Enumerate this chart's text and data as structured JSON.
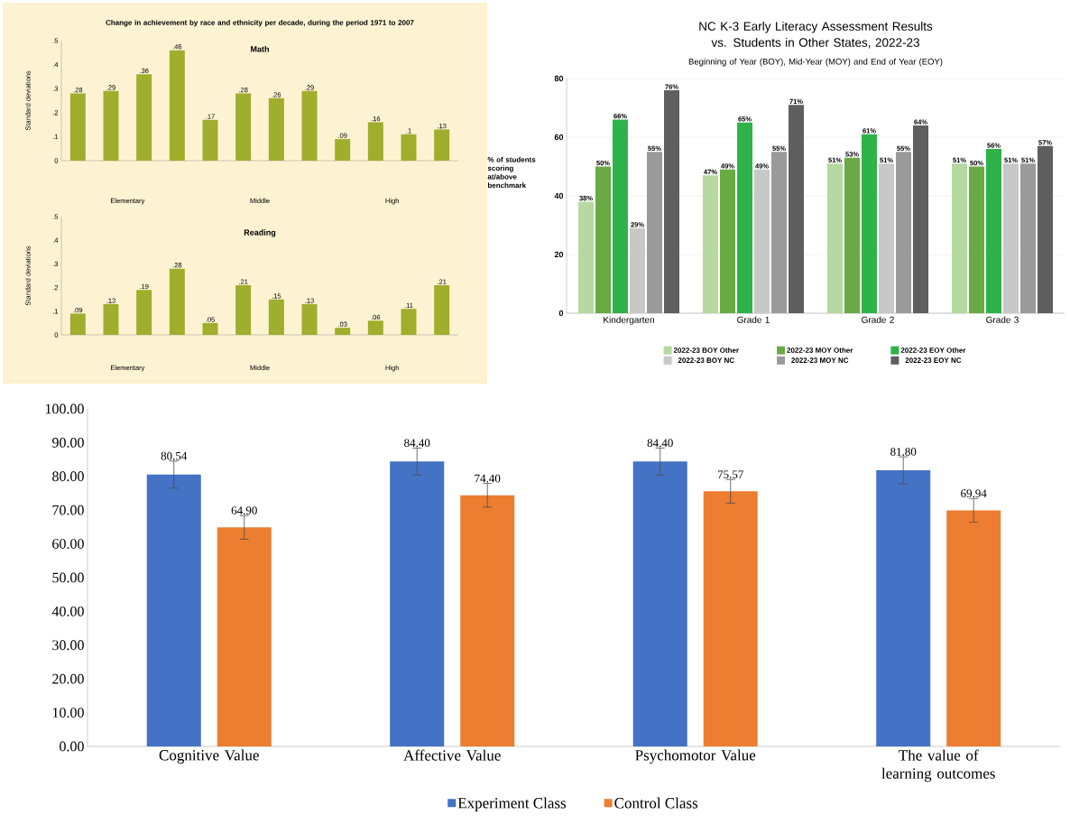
{
  "chart_data": [
    {
      "type": "bar",
      "title": "Change in achievement by race and ethnicity per decade, during the period 1971 to 2007",
      "subtitle": "Math",
      "ylabel": "Standard deviations",
      "categories": [
        null,
        null,
        null,
        null,
        null,
        null,
        null,
        null,
        null,
        null,
        null,
        null
      ],
      "values": [
        0.28,
        0.29,
        0.36,
        0.46,
        0.17,
        0.28,
        0.26,
        0.29,
        0.09,
        0.16,
        0.11,
        0.13
      ],
      "color": "#9fae2c",
      "value_labels": [
        ".28",
        ".29",
        ".36",
        ".46",
        ".17",
        ".28",
        ".26",
        ".29",
        ".09",
        ".16",
        ".1",
        ".13"
      ],
      "ylim": [
        0,
        0.5
      ],
      "yticks": [
        {
          "value": 0,
          "label": "0"
        },
        {
          "value": 0.1,
          "label": ".1"
        },
        {
          "value": 0.2,
          "label": ".2"
        },
        {
          "value": 0.3,
          "label": ".3"
        },
        {
          "value": 0.4,
          "label": ".4"
        },
        {
          "value": 0.5,
          "label": ".5"
        }
      ],
      "annotations": [
        "Elementary",
        "Middle",
        "High"
      ]
    },
    {
      "type": "bar",
      "title": "Reading",
      "ylabel": "Standard deviations",
      "categories": [
        null,
        null,
        null,
        null,
        null,
        null,
        null,
        null,
        null,
        null,
        null,
        null
      ],
      "values": [
        0.09,
        0.13,
        0.19,
        0.28,
        0.05,
        0.21,
        0.15,
        0.13,
        0.03,
        0.06,
        0.11,
        0.21
      ],
      "color": "#9fae2c",
      "value_labels": [
        ".09",
        ".13",
        ".19",
        ".28",
        ".05",
        ".21",
        ".15",
        ".13",
        ".03",
        ".06",
        ".11",
        ".21"
      ],
      "ylim": [
        0,
        0.5
      ],
      "yticks": [
        {
          "value": 0,
          "label": "0"
        },
        {
          "value": 0.1,
          "label": ".1"
        },
        {
          "value": 0.2,
          "label": ".2"
        },
        {
          "value": 0.3,
          "label": ".3"
        },
        {
          "value": 0.4,
          "label": ".4"
        },
        {
          "value": 0.5,
          "label": ".5"
        }
      ],
      "annotations": [
        "Elementary",
        "Middle",
        "High"
      ]
    },
    {
      "type": "bar",
      "title": "NC K-3 Early Literacy Assessment Results vs. Students in Other States, 2022-23",
      "subtitle": "Beginning of Year (BOY), Mid-Year (MOY) and End of Year (EOY)",
      "ylabel": "% of students scoring at/above benchmark",
      "categories": [
        "Kindergarten",
        "Grade 1",
        "Grade 2",
        "Grade 3"
      ],
      "series": [
        {
          "name": "2022-23 BOY Other",
          "color": "#b5d9a0",
          "values": [
            38,
            47,
            51,
            51
          ],
          "value_labels": [
            "38%",
            "47%",
            "51%",
            "51%"
          ]
        },
        {
          "name": "2022-23 MOY Other",
          "color": "#6aaa45",
          "values": [
            50,
            49,
            53,
            50
          ],
          "value_labels": [
            "50%",
            "49%",
            "53%",
            "50%"
          ]
        },
        {
          "name": "2022-23 EOY Other",
          "color": "#2db34a",
          "values": [
            66,
            65,
            61,
            56
          ],
          "value_labels": [
            "66%",
            "65%",
            "61%",
            "56%"
          ]
        },
        {
          "name": "2022-23 BOY NC",
          "color": "#c8c8c8",
          "values": [
            29,
            49,
            51,
            51
          ],
          "value_labels": [
            "29%",
            "49%",
            "51%",
            "51%"
          ]
        },
        {
          "name": "2022-23 MOY NC",
          "color": "#9a9a9a",
          "values": [
            55,
            55,
            55,
            51
          ],
          "value_labels": [
            "55%",
            "55%",
            "55%",
            "51%"
          ]
        },
        {
          "name": "2022-23 EOY NC",
          "color": "#5f5f5f",
          "values": [
            76,
            71,
            64,
            57
          ],
          "value_labels": [
            "76%",
            "71%",
            "64%",
            "57%"
          ]
        }
      ],
      "ylim": [
        0,
        80
      ],
      "yticks": [
        0,
        20,
        40,
        60,
        80
      ],
      "grid": "y",
      "legend": "bottom"
    },
    {
      "type": "bar",
      "categories": [
        "Cognitive Value",
        "Affective Value",
        "Psychomotor Value",
        "The value of learning outcomes"
      ],
      "series": [
        {
          "name": "Experiment Class",
          "color": "#4472c4",
          "values": [
            80.54,
            84.4,
            84.4,
            81.8
          ],
          "errors": [
            4,
            4,
            4,
            4
          ],
          "value_labels": [
            "80.54",
            "84.40",
            "84.40",
            "81.80"
          ]
        },
        {
          "name": "Control Class",
          "color": "#ed7d31",
          "values": [
            64.9,
            74.4,
            75.57,
            69.94
          ],
          "errors": [
            3.5,
            3.5,
            3.5,
            3.5
          ],
          "value_labels": [
            "64.90",
            "74.40",
            "75.57",
            "69.94"
          ]
        }
      ],
      "ylim": [
        0,
        100
      ],
      "yticks": [
        {
          "value": 0,
          "label": "0.00"
        },
        {
          "value": 10,
          "label": "10.00"
        },
        {
          "value": 20,
          "label": "20.00"
        },
        {
          "value": 30,
          "label": "30.00"
        },
        {
          "value": 40,
          "label": "40.00"
        },
        {
          "value": 50,
          "label": "50.00"
        },
        {
          "value": 60,
          "label": "60.00"
        },
        {
          "value": 70,
          "label": "70.00"
        },
        {
          "value": 80,
          "label": "80.00"
        },
        {
          "value": 90,
          "label": "90.00"
        },
        {
          "value": 100,
          "label": "100.00"
        }
      ],
      "legend": "bottom"
    }
  ]
}
